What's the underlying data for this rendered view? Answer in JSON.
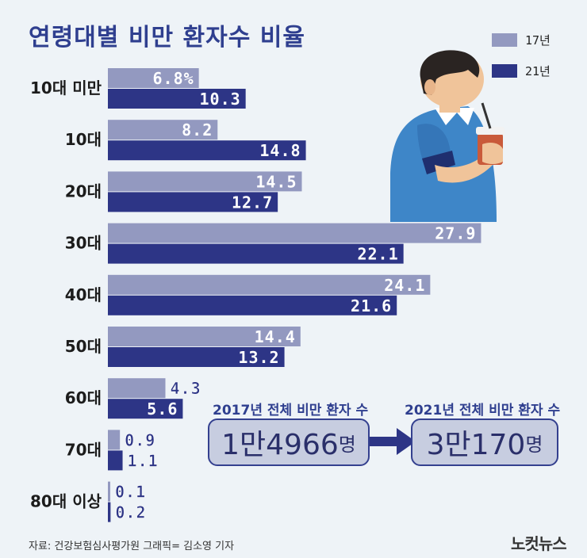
{
  "chart_data": {
    "type": "bar",
    "orientation": "horizontal",
    "title": "연령대별 비만 환자수 비율",
    "categories": [
      "10대 미만",
      "10대",
      "20대",
      "30대",
      "40대",
      "50대",
      "60대",
      "70대",
      "80대 이상"
    ],
    "series": [
      {
        "name": "17년",
        "color": "#9399c0",
        "values": [
          6.8,
          8.2,
          14.5,
          27.9,
          24.1,
          14.4,
          4.3,
          0.9,
          0.1
        ],
        "labels": [
          "6.8%",
          "8.2",
          "14.5",
          "27.9",
          "24.1",
          "14.4",
          "4.3",
          "0.9",
          "0.1"
        ]
      },
      {
        "name": "21년",
        "color": "#2d3586",
        "values": [
          10.3,
          14.8,
          12.7,
          22.1,
          21.6,
          13.2,
          5.6,
          1.1,
          0.2
        ],
        "labels": [
          "10.3",
          "14.8",
          "12.7",
          "22.1",
          "21.6",
          "13.2",
          "5.6",
          "1.1",
          "0.2"
        ]
      }
    ],
    "xlim": [
      0,
      29
    ],
    "grid": false,
    "legend_position": "top-right"
  },
  "totals": {
    "first": {
      "heading": "2017년 전체 비만 환자 수",
      "value": "1만4966",
      "unit": "명"
    },
    "second": {
      "heading": "2021년 전체 비만 환자 수",
      "value": "3만170",
      "unit": "명"
    }
  },
  "source": "자료: 건강보험심사평가원   그래픽= 김소영 기자",
  "logo": "노컷뉴스",
  "icons": {
    "illustration": "man-drinking-soda-illustration",
    "arrow": "arrow-right-icon"
  }
}
